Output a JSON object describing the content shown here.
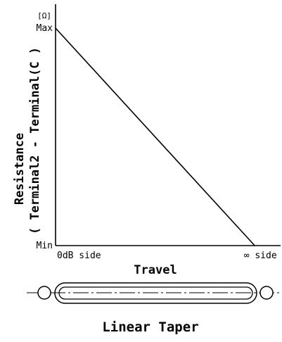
{
  "chart_data": {
    "type": "line",
    "title": "Linear Taper",
    "xlabel": "Travel",
    "ylabel_line1": "Resistance",
    "ylabel_line2": "( Terminal2 - Terminal(C )",
    "unit_label": "[Ω]",
    "x_ticks": [
      "0dB side",
      "∞ side"
    ],
    "y_ticks": [
      "Min",
      "Max"
    ],
    "x": [
      0,
      1
    ],
    "xlim": [
      0,
      1.13
    ],
    "ylim": [
      0,
      1.11
    ],
    "series": [
      {
        "values": [
          1,
          0
        ]
      }
    ],
    "grid": false,
    "line_color": "#000000"
  }
}
